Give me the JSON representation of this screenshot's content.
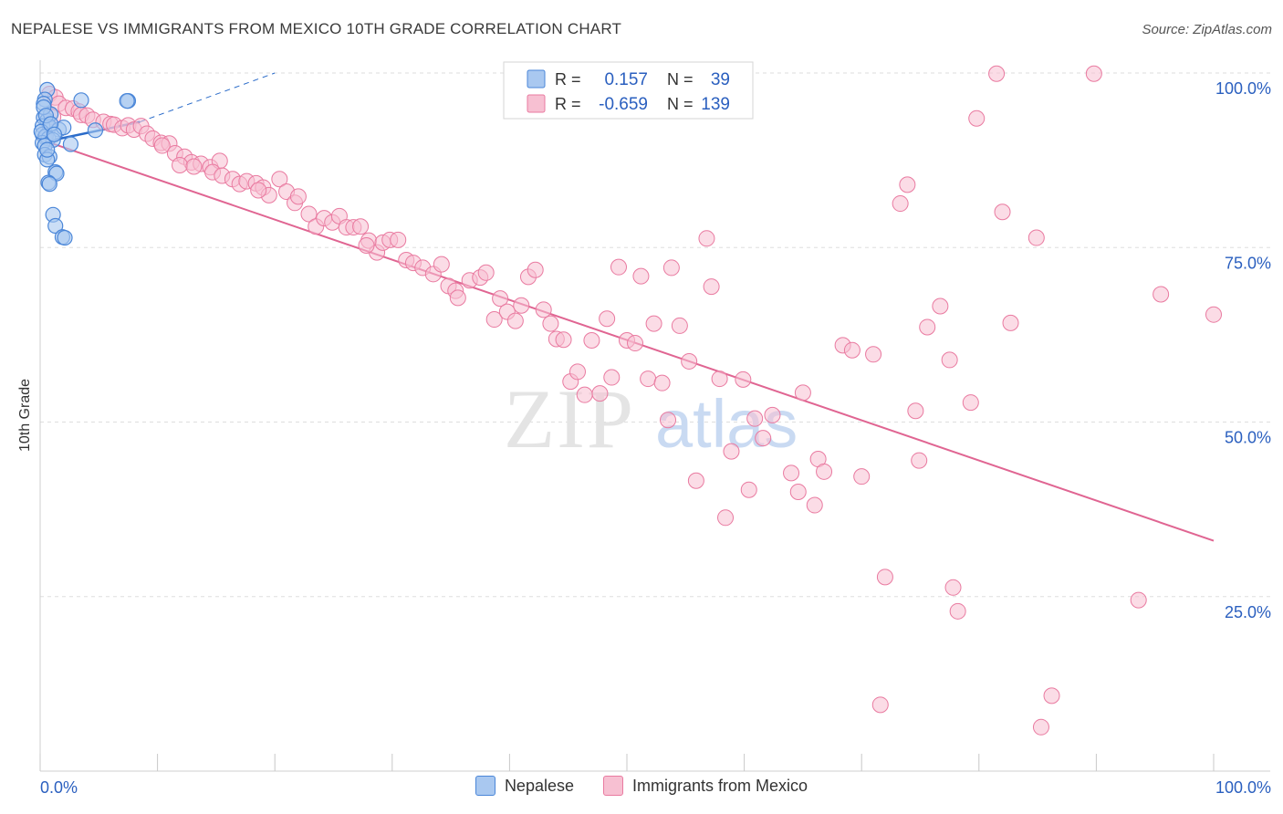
{
  "title": "NEPALESE VS IMMIGRANTS FROM MEXICO 10TH GRADE CORRELATION CHART",
  "source": "Source: ZipAtlas.com",
  "watermark": {
    "zip": "ZIP",
    "atlas": "atlas"
  },
  "colors": {
    "blue_fill": "#a9c8f0",
    "blue_stroke": "#4a86d8",
    "blue_line": "#2a6bc9",
    "pink_fill": "#f7c0d2",
    "pink_stroke": "#e97aa0",
    "pink_line": "#e06592",
    "value_text": "#2a5fbf",
    "grid": "#dedede"
  },
  "legend": {
    "rows": [
      {
        "r_label": "R =",
        "r_value": "0.157",
        "n_label": "N =",
        "n_value": "39"
      },
      {
        "r_label": "R =",
        "r_value": "-0.659",
        "n_label": "N =",
        "n_value": "139"
      }
    ]
  },
  "bottom_legend": {
    "series1": "Nepalese",
    "series2": "Immigrants from Mexico"
  },
  "chart_data": {
    "type": "scatter",
    "ylabel": "10th Grade",
    "xlabel": "",
    "xlim": [
      0,
      100
    ],
    "ylim": [
      0,
      100
    ],
    "x_tick_labels": [
      {
        "value": 0,
        "label": "0.0%"
      },
      {
        "value": 100,
        "label": "100.0%"
      }
    ],
    "y_tick_labels": [
      {
        "value": 100,
        "label": "100.0%"
      },
      {
        "value": 75,
        "label": "75.0%"
      },
      {
        "value": 50,
        "label": "50.0%"
      },
      {
        "value": 25,
        "label": "25.0%"
      }
    ],
    "series": [
      {
        "name": "Nepalese",
        "r": 0.157,
        "n": 39,
        "trend": {
          "x0": 0,
          "y0": 90.0,
          "x1": 8.5,
          "y1": 93.0,
          "dash_to_x": 20,
          "dash_to_y": 100
        },
        "points": [
          [
            0.6,
            97.6
          ],
          [
            0.4,
            96.2
          ],
          [
            0.3,
            95.6
          ],
          [
            3.5,
            96.1
          ],
          [
            7.5,
            96.0
          ],
          [
            7.4,
            96.0
          ],
          [
            0.3,
            93.6
          ],
          [
            0.6,
            93.2
          ],
          [
            0.9,
            94.1
          ],
          [
            0.2,
            92.4
          ],
          [
            0.8,
            92.3
          ],
          [
            1.6,
            91.9
          ],
          [
            2.0,
            92.2
          ],
          [
            0.2,
            91.2
          ],
          [
            0.4,
            90.8
          ],
          [
            0.5,
            91.0
          ],
          [
            0.7,
            90.6
          ],
          [
            1.1,
            90.4
          ],
          [
            4.7,
            91.8
          ],
          [
            0.2,
            90.0
          ],
          [
            0.4,
            89.6
          ],
          [
            2.6,
            89.8
          ],
          [
            0.4,
            88.3
          ],
          [
            0.8,
            88.0
          ],
          [
            0.6,
            87.6
          ],
          [
            1.3,
            85.8
          ],
          [
            1.4,
            85.6
          ],
          [
            0.7,
            84.3
          ],
          [
            0.8,
            84.1
          ],
          [
            1.1,
            79.7
          ],
          [
            1.3,
            78.1
          ],
          [
            1.9,
            76.5
          ],
          [
            2.1,
            76.4
          ],
          [
            0.3,
            95.1
          ],
          [
            0.5,
            93.9
          ],
          [
            0.1,
            91.6
          ],
          [
            0.9,
            92.7
          ],
          [
            1.2,
            91.2
          ],
          [
            0.6,
            89.0
          ]
        ]
      },
      {
        "name": "Immigrants from Mexico",
        "r": -0.659,
        "n": 139,
        "trend": {
          "x0": 0,
          "y0": 90.5,
          "x1": 100,
          "y1": 33.0
        },
        "points": [
          [
            0.8,
            97.0
          ],
          [
            1.3,
            96.5
          ],
          [
            1.6,
            95.6
          ],
          [
            2.2,
            95.0
          ],
          [
            2.8,
            94.9
          ],
          [
            3.3,
            94.5
          ],
          [
            3.5,
            94.0
          ],
          [
            4.0,
            93.9
          ],
          [
            1.1,
            93.7
          ],
          [
            4.5,
            93.3
          ],
          [
            5.4,
            93.0
          ],
          [
            6.0,
            92.7
          ],
          [
            6.3,
            92.6
          ],
          [
            7.0,
            92.1
          ],
          [
            7.5,
            92.5
          ],
          [
            8.0,
            91.9
          ],
          [
            8.6,
            92.4
          ],
          [
            9.1,
            91.3
          ],
          [
            9.6,
            90.6
          ],
          [
            10.3,
            90.0
          ],
          [
            11.0,
            89.9
          ],
          [
            10.4,
            89.6
          ],
          [
            11.5,
            88.5
          ],
          [
            12.3,
            88.0
          ],
          [
            12.9,
            87.2
          ],
          [
            13.7,
            87.0
          ],
          [
            14.5,
            86.5
          ],
          [
            15.3,
            87.4
          ],
          [
            11.9,
            86.8
          ],
          [
            13.1,
            86.6
          ],
          [
            14.7,
            85.8
          ],
          [
            15.5,
            85.3
          ],
          [
            16.4,
            84.8
          ],
          [
            17.0,
            84.1
          ],
          [
            17.6,
            84.5
          ],
          [
            18.4,
            84.2
          ],
          [
            19.0,
            83.6
          ],
          [
            19.5,
            82.5
          ],
          [
            20.4,
            84.8
          ],
          [
            18.6,
            83.2
          ],
          [
            21.0,
            83.0
          ],
          [
            21.7,
            81.4
          ],
          [
            22.0,
            82.3
          ],
          [
            22.9,
            79.8
          ],
          [
            23.5,
            78.0
          ],
          [
            24.2,
            79.2
          ],
          [
            24.9,
            78.6
          ],
          [
            25.5,
            79.5
          ],
          [
            26.1,
            77.9
          ],
          [
            26.7,
            77.9
          ],
          [
            27.3,
            78.0
          ],
          [
            28.0,
            76.0
          ],
          [
            28.7,
            74.3
          ],
          [
            29.2,
            75.7
          ],
          [
            29.8,
            76.1
          ],
          [
            30.5,
            76.1
          ],
          [
            27.8,
            75.3
          ],
          [
            31.2,
            73.2
          ],
          [
            31.8,
            72.8
          ],
          [
            32.6,
            72.1
          ],
          [
            33.5,
            71.2
          ],
          [
            34.2,
            72.6
          ],
          [
            34.8,
            69.5
          ],
          [
            35.4,
            68.8
          ],
          [
            35.6,
            67.8
          ],
          [
            36.6,
            70.3
          ],
          [
            37.5,
            70.7
          ],
          [
            38.0,
            71.4
          ],
          [
            38.7,
            64.7
          ],
          [
            39.2,
            67.7
          ],
          [
            39.8,
            65.8
          ],
          [
            40.5,
            64.5
          ],
          [
            41.0,
            66.7
          ],
          [
            41.6,
            70.8
          ],
          [
            42.2,
            71.8
          ],
          [
            42.9,
            66.1
          ],
          [
            43.5,
            64.1
          ],
          [
            44.0,
            61.9
          ],
          [
            44.6,
            61.8
          ],
          [
            45.2,
            55.8
          ],
          [
            45.8,
            57.2
          ],
          [
            46.4,
            53.9
          ],
          [
            47.0,
            61.7
          ],
          [
            47.7,
            54.1
          ],
          [
            48.3,
            64.8
          ],
          [
            48.7,
            56.4
          ],
          [
            49.3,
            72.2
          ],
          [
            50.0,
            61.7
          ],
          [
            50.7,
            61.3
          ],
          [
            51.2,
            70.9
          ],
          [
            51.8,
            56.2
          ],
          [
            52.3,
            64.1
          ],
          [
            53.0,
            55.6
          ],
          [
            53.5,
            50.3
          ],
          [
            53.8,
            72.1
          ],
          [
            54.5,
            63.8
          ],
          [
            55.3,
            58.7
          ],
          [
            55.9,
            41.6
          ],
          [
            56.8,
            76.3
          ],
          [
            57.2,
            69.4
          ],
          [
            57.9,
            56.2
          ],
          [
            58.4,
            36.3
          ],
          [
            58.9,
            45.8
          ],
          [
            59.9,
            56.1
          ],
          [
            60.4,
            40.3
          ],
          [
            60.9,
            50.5
          ],
          [
            61.6,
            47.7
          ],
          [
            62.4,
            51.0
          ],
          [
            64.0,
            42.7
          ],
          [
            64.6,
            40.0
          ],
          [
            65.0,
            54.2
          ],
          [
            66.0,
            38.1
          ],
          [
            66.3,
            44.7
          ],
          [
            66.8,
            42.9
          ],
          [
            68.4,
            61.0
          ],
          [
            69.2,
            60.3
          ],
          [
            70.0,
            42.2
          ],
          [
            71.0,
            59.7
          ],
          [
            71.6,
            9.5
          ],
          [
            72.0,
            27.8
          ],
          [
            73.3,
            81.3
          ],
          [
            73.9,
            84.0
          ],
          [
            74.6,
            51.6
          ],
          [
            74.9,
            44.5
          ],
          [
            75.6,
            63.6
          ],
          [
            76.7,
            66.6
          ],
          [
            77.5,
            58.9
          ],
          [
            77.8,
            26.3
          ],
          [
            78.2,
            22.9
          ],
          [
            79.3,
            52.8
          ],
          [
            79.8,
            93.5
          ],
          [
            81.5,
            99.9
          ],
          [
            82.0,
            80.1
          ],
          [
            82.7,
            64.2
          ],
          [
            84.9,
            76.4
          ],
          [
            85.3,
            6.3
          ],
          [
            86.2,
            10.8
          ],
          [
            89.8,
            99.9
          ],
          [
            93.6,
            24.5
          ],
          [
            95.5,
            68.3
          ],
          [
            100.0,
            65.4
          ]
        ]
      }
    ]
  }
}
